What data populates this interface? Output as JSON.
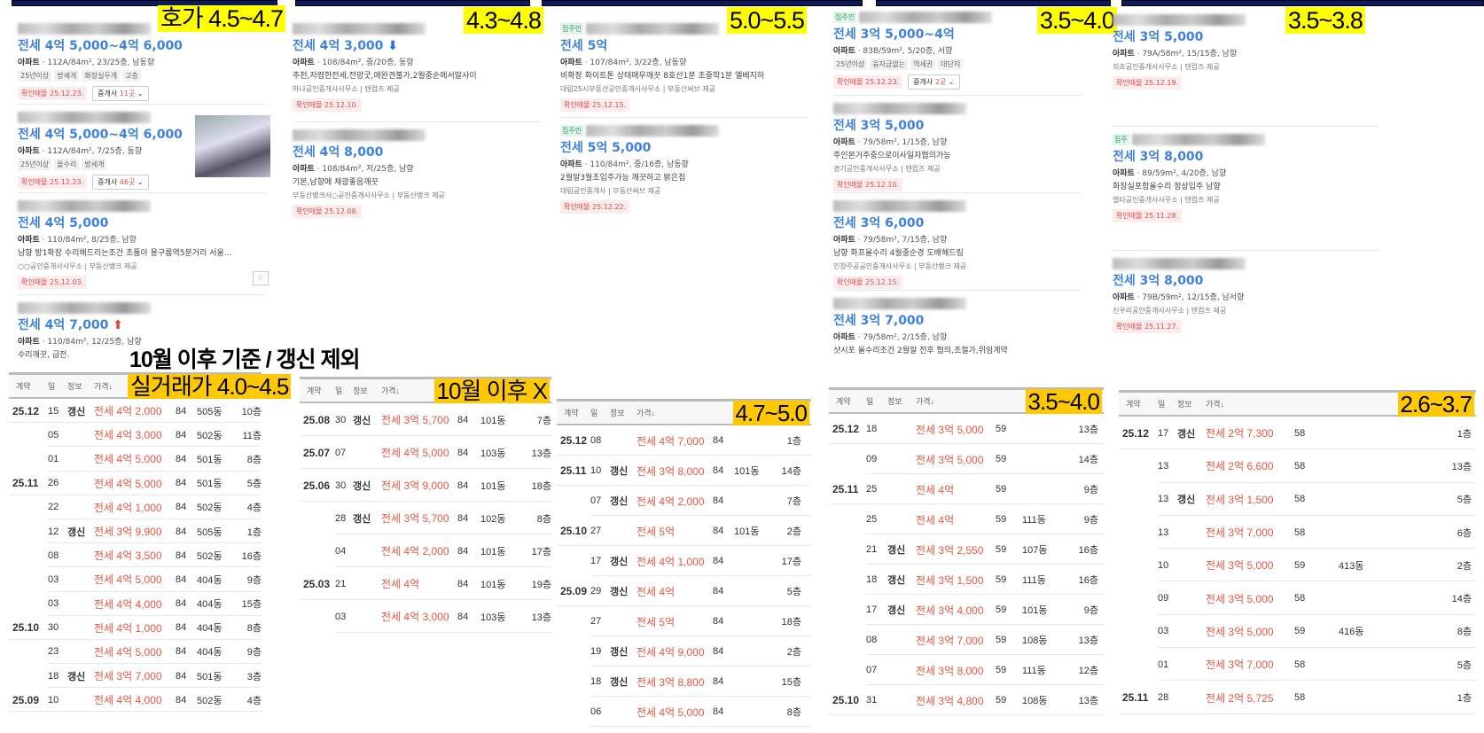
{
  "overlay": {
    "title": "10월 이후 기준 / 갱신 제외"
  },
  "colors": {
    "price_blue": "#3d82e0",
    "trade_red": "#f0553f",
    "label_yellow": "#ffff00",
    "label_amber": "#ffc800",
    "header_navy": "#0b1b5e"
  },
  "panels": [
    {
      "label": "호가 4.5~4.7",
      "listings": [
        {
          "tag": "",
          "price": "전세 4억 5,000~4억 6,000",
          "type": "아파트",
          "info": " · 112A/84m², 23/25층, 남동향",
          "tags": [
            "25년이상",
            "방세개",
            "화장실두개",
            "고층"
          ],
          "confirm": "확인매물 25.12.23.",
          "broker": "중개사",
          "broker_count": "11곳"
        },
        {
          "tag": "",
          "price": "전세 4억 5,000~4억 6,000",
          "type": "아파트",
          "info": " · 112A/84m², 7/25층, 동향",
          "tags": [
            "25년이상",
            "올수리",
            "방세개"
          ],
          "confirm": "확인매물 25.12.23.",
          "broker": "중개사",
          "broker_count": "46곳",
          "photo": true
        },
        {
          "tag": "",
          "price": "전세 4억 5,000",
          "type": "아파트",
          "info": " · 110/84m², 8/25층, 남향",
          "desc": "남향 방1확장 수리해드리는조건 초품아 용구름역5분거리 서울…",
          "agent": "○○공인중개사사무소 | 부동산뱅크 제공",
          "confirm": "확인매물 25.12.03.",
          "star": true
        },
        {
          "tag": "",
          "price": "전세 4억 7,000",
          "arrow": "up",
          "type": "아파트",
          "info": " · 110/84m², 12/25층, 남향",
          "desc": "수리깨끗, 급전."
        }
      ]
    },
    {
      "label": "4.3~4.8",
      "listings": [
        {
          "tag": "",
          "price": "전세 4억 3,000",
          "arrow": "down",
          "type": "아파트",
          "info": " · 108/84m², 중/20층, 동향",
          "desc": "추천,저렴한전세,전망굿,애완견불가,2월중순에서말사이",
          "agent": "하나공인중개사사무소 | 텐컴즈 제공",
          "confirm": "확인매물 25.12.10."
        },
        {
          "tag": "",
          "price": "전세 4억 8,000",
          "type": "아파트",
          "info": " · 108/84m², 저/25층, 남향",
          "desc": "기본,남향에 채광좋음깨끗",
          "agent": "부동산뱅크서○공인중개사사무소 | 부동산뱅크 제공",
          "confirm": "확인매물 25.12.08."
        }
      ]
    },
    {
      "label": "5.0~5.5",
      "listings": [
        {
          "tag": "집주인",
          "price": "전세 5억",
          "type": "아파트",
          "info": " · 107/84m², 3/22층, 남동향",
          "desc": "비확장 화이트톤 상태매우깨끗 8호선1분 초중학1분 엘베지하",
          "agent": "대림25시부동산공인중개사사무소 | 부동산써브 제공",
          "confirm": "확인매물 25.12.15."
        },
        {
          "tag": "집주인",
          "price": "전세 5억 5,000",
          "type": "아파트",
          "info": " · 110/84m², 중/16층, 남동향",
          "desc": "2월말3월초입주가능 깨끗하고 밝은집",
          "agent": "대림공인중개사 | 부동산써브 제공",
          "confirm": "확인매물 25.12.22."
        }
      ]
    },
    {
      "label": "3.5~4.0",
      "listings": [
        {
          "tag": "집주인",
          "price": "전세 3억 5,000~4억",
          "type": "아파트",
          "info": " · 83B/59m², 5/20층, 서향",
          "tags": [
            "25년이상",
            "융자금없는",
            "역세권",
            "대단지"
          ],
          "confirm": "확인매물 25.12.23.",
          "broker": "중개사",
          "broker_count": "2곳"
        },
        {
          "tag": "",
          "price": "전세 3억 5,000",
          "type": "아파트",
          "info": " · 79/58m², 1/15층, 남향",
          "desc": "주인본거주중으로이사일자협의가능",
          "agent": "경기공인중개사사무소 | 텐컴즈 제공",
          "confirm": "확인매물 25.12.10."
        },
        {
          "tag": "",
          "price": "전세 3억 6,000",
          "type": "아파트",
          "info": " · 79/58m², 7/15층, 남향",
          "desc": "남향 화프올수리 4월중순경 도배해드림",
          "agent": "인창주공공인중개사사무소 | 부동산뱅크 제공",
          "confirm": "확인매물 25.12.15."
        },
        {
          "tag": "",
          "price": "전세 3억 7,000",
          "type": "아파트",
          "info": " · 79/58m², 2/15층, 남향",
          "desc": "샷시포 올수리조건 2월말 전후 협의,조절가,위임계약"
        }
      ]
    },
    {
      "label": "3.5~3.8",
      "listings": [
        {
          "tag": "",
          "price": "전세 3억 5,000",
          "type": "아파트",
          "info": " · 79A/58m², 15/15층, 남향",
          "agent": "희초공인중개사사무소 | 텐컴즈 제공",
          "confirm": "확인매물 25.12.19."
        },
        {
          "tag": "집주",
          "price": "전세 3억 8,000",
          "type": "아파트",
          "info": " · 89/59m², 4/20층, 남향",
          "desc": "화장실포함올수리 정상입주 남향",
          "agent": "열타공인중개사사무소 | 텐컴즈 제공",
          "confirm": "확인매물 25.11.28."
        },
        {
          "tag": "",
          "price": "전세 3억 8,000",
          "type": "아파트",
          "info": " · 79B/59m², 12/15층, 남서향",
          "agent": "신우리공인중개사사무소 | 텐컴즈 제공",
          "confirm": "확인매물 25.11.27."
        }
      ]
    }
  ],
  "tables": [
    {
      "label": "실거래가 4.0~4.5",
      "headers": [
        "계약",
        "일",
        "정보",
        "가격↓"
      ],
      "rows": [
        [
          "25.12",
          "15",
          "갱신",
          "전세 4억 2,000",
          "84",
          "505동",
          "10층"
        ],
        [
          "",
          "05",
          "",
          "전세 4억 3,000",
          "84",
          "502동",
          "11층"
        ],
        [
          "",
          "01",
          "",
          "전세 4억 5,000",
          "84",
          "501동",
          "8층"
        ],
        [
          "25.11",
          "26",
          "",
          "전세 4억 5,000",
          "84",
          "501동",
          "5층"
        ],
        [
          "",
          "22",
          "",
          "전세 4억 1,000",
          "84",
          "502동",
          "4층"
        ],
        [
          "",
          "12",
          "갱신",
          "전세 3억 9,900",
          "84",
          "505동",
          "1층"
        ],
        [
          "",
          "08",
          "",
          "전세 4억 3,500",
          "84",
          "502동",
          "16층"
        ],
        [
          "",
          "03",
          "",
          "전세 4억 5,000",
          "84",
          "404동",
          "9층"
        ],
        [
          "",
          "03",
          "",
          "전세 4억 4,000",
          "84",
          "404동",
          "15층"
        ],
        [
          "25.10",
          "30",
          "",
          "전세 4억 1,000",
          "84",
          "404동",
          "8층"
        ],
        [
          "",
          "23",
          "",
          "전세 4억 5,000",
          "84",
          "404동",
          "9층"
        ],
        [
          "",
          "18",
          "갱신",
          "전세 3억 7,000",
          "84",
          "501동",
          "3층"
        ],
        [
          "25.09",
          "10",
          "",
          "전세 4억 4,000",
          "84",
          "502동",
          "4층"
        ]
      ]
    },
    {
      "label": "10월 이후 X",
      "headers": [
        "계약",
        "일",
        "정보",
        "가격↓"
      ],
      "rows": [
        [
          "25.08",
          "30",
          "갱신",
          "전세 3억 5,700",
          "84",
          "101동",
          "7층"
        ],
        [
          "25.07",
          "07",
          "",
          "전세 4억 5,000",
          "84",
          "103동",
          "13층"
        ],
        [
          "25.06",
          "30",
          "갱신",
          "전세 3억 9,000",
          "84",
          "101동",
          "18층"
        ],
        [
          "",
          "28",
          "갱신",
          "전세 3억 5,700",
          "84",
          "102동",
          "8층"
        ],
        [
          "",
          "04",
          "",
          "전세 4억 2,000",
          "84",
          "101동",
          "17층"
        ],
        [
          "25.03",
          "21",
          "",
          "전세 4억",
          "84",
          "101동",
          "19층"
        ],
        [
          "",
          "03",
          "",
          "전세 4억 3,000",
          "84",
          "103동",
          "13층"
        ]
      ]
    },
    {
      "label": "4.7~5.0",
      "headers": [
        "계약",
        "일",
        "정보",
        "가격↓"
      ],
      "rows": [
        [
          "25.12",
          "08",
          "",
          "전세 4억 7,000",
          "84",
          "",
          "1층"
        ],
        [
          "25.11",
          "10",
          "갱신",
          "전세 3억 8,000",
          "84",
          "101동",
          "14층"
        ],
        [
          "",
          "07",
          "갱신",
          "전세 4억 2,000",
          "84",
          "",
          "7층"
        ],
        [
          "25.10",
          "27",
          "",
          "전세 5억",
          "84",
          "101동",
          "2층"
        ],
        [
          "",
          "17",
          "갱신",
          "전세 4억 1,000",
          "84",
          "",
          "17층"
        ],
        [
          "25.09",
          "29",
          "갱신",
          "전세 4억",
          "84",
          "",
          "5층"
        ],
        [
          "",
          "27",
          "",
          "전세 5억",
          "84",
          "",
          "18층"
        ],
        [
          "",
          "19",
          "갱신",
          "전세 4억 9,000",
          "84",
          "",
          "2층"
        ],
        [
          "",
          "18",
          "갱신",
          "전세 3억 8,800",
          "84",
          "",
          "15층"
        ],
        [
          "",
          "06",
          "",
          "전세 4억 5,000",
          "84",
          "",
          "8층"
        ]
      ]
    },
    {
      "label": "3.5~4.0",
      "headers": [
        "계약",
        "일",
        "정보",
        "가격↓"
      ],
      "rows": [
        [
          "25.12",
          "18",
          "",
          "전세 3억 5,000",
          "59",
          "",
          "13층"
        ],
        [
          "",
          "09",
          "",
          "전세 3억 5,000",
          "59",
          "",
          "14층"
        ],
        [
          "25.11",
          "25",
          "",
          "전세 4억",
          "59",
          "",
          "9층"
        ],
        [
          "",
          "25",
          "",
          "전세 4억",
          "59",
          "111동",
          "9층"
        ],
        [
          "",
          "21",
          "갱신",
          "전세 3억 2,550",
          "59",
          "107동",
          "16층"
        ],
        [
          "",
          "18",
          "갱신",
          "전세 3억 1,500",
          "59",
          "111동",
          "16층"
        ],
        [
          "",
          "17",
          "갱신",
          "전세 3억 4,000",
          "59",
          "101동",
          "9층"
        ],
        [
          "",
          "08",
          "",
          "전세 3억 7,000",
          "59",
          "108동",
          "13층"
        ],
        [
          "",
          "07",
          "",
          "전세 3억 8,000",
          "59",
          "111동",
          "12층"
        ],
        [
          "25.10",
          "31",
          "",
          "전세 3억 4,800",
          "59",
          "108동",
          "13층"
        ]
      ]
    },
    {
      "label": "2.6~3.7",
      "headers": [
        "계약",
        "일",
        "정보",
        "가격↓"
      ],
      "rows": [
        [
          "25.12",
          "17",
          "갱신",
          "전세 2억 7,300",
          "58",
          "",
          "1층"
        ],
        [
          "",
          "13",
          "",
          "전세 2억 6,600",
          "58",
          "",
          "13층"
        ],
        [
          "",
          "13",
          "갱신",
          "전세 3억 1,500",
          "58",
          "",
          "5층"
        ],
        [
          "",
          "13",
          "",
          "전세 3억 7,000",
          "58",
          "",
          "6층"
        ],
        [
          "",
          "10",
          "",
          "전세 3억 5,000",
          "59",
          "413동",
          "2층"
        ],
        [
          "",
          "09",
          "",
          "전세 3억 5,000",
          "58",
          "",
          "14층"
        ],
        [
          "",
          "03",
          "",
          "전세 3억 5,000",
          "59",
          "416동",
          "8층"
        ],
        [
          "",
          "01",
          "",
          "전세 3억 7,000",
          "58",
          "",
          "5층"
        ],
        [
          "25.11",
          "28",
          "",
          "전세 2억 5,725",
          "58",
          "",
          "1층"
        ]
      ]
    }
  ]
}
